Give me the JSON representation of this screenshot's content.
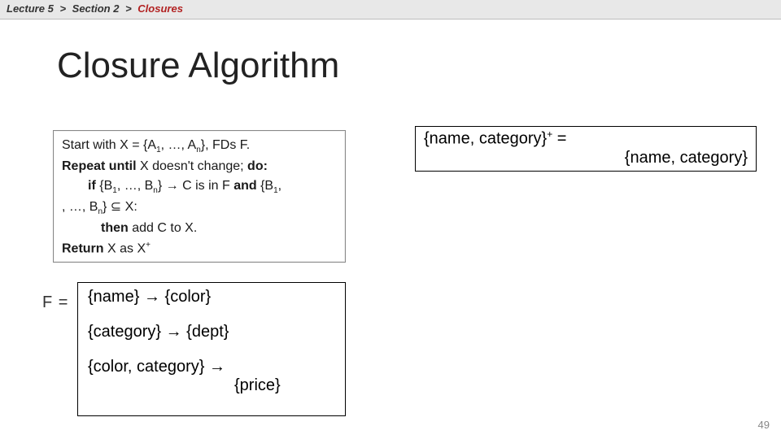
{
  "breadcrumb": {
    "parts": [
      "Lecture 5",
      "Section 2",
      "Closures"
    ],
    "sep": ">",
    "current_color": "#b22222",
    "bar_bg": "#e8e8e8"
  },
  "title": "Closure Algorithm",
  "algorithm": {
    "line1_prefix": "Start with X = {A",
    "line1_mid": ", …, A",
    "line1_suffix": "}, FDs F.",
    "line2_prefix": "Repeat until",
    "line2_rest": " X doesn't change; ",
    "line2_do": "do:",
    "line3_prefix": "if",
    "line3_mid1": " {B",
    "line3_mid2": ", …, B",
    "line3_mid3": "} ",
    "line3_arrow": "→",
    "line3_rest": " C is in F ",
    "line3_and": "and",
    "line3_tail": " {B",
    "line4_mid": ", …, B",
    "line4_tail": "} ⊆ X:",
    "line5_then": "then",
    "line5_rest": "  add C to X.",
    "line6_prefix": "Return",
    "line6_rest": " X as X",
    "line6_sup": "+",
    "sub1": "1",
    "subn": "n"
  },
  "closure": {
    "lhs": "{name, category}",
    "sup": "+",
    "eq": " = ",
    "rhs": "{name, category}"
  },
  "f_label": "F = ",
  "fds": {
    "arrow": "→",
    "fd1_l": "{name} ",
    "fd1_r": " {color}",
    "fd2_l": "{category} ",
    "fd2_r": " {dept}",
    "fd3_l": "{color, category} ",
    "fd3_r": "",
    "fd3_price": "{price}"
  },
  "pagenum": "49",
  "colors": {
    "border": "#000000",
    "box_bg": "#ffffff",
    "text": "#000000",
    "title": "#222222"
  }
}
